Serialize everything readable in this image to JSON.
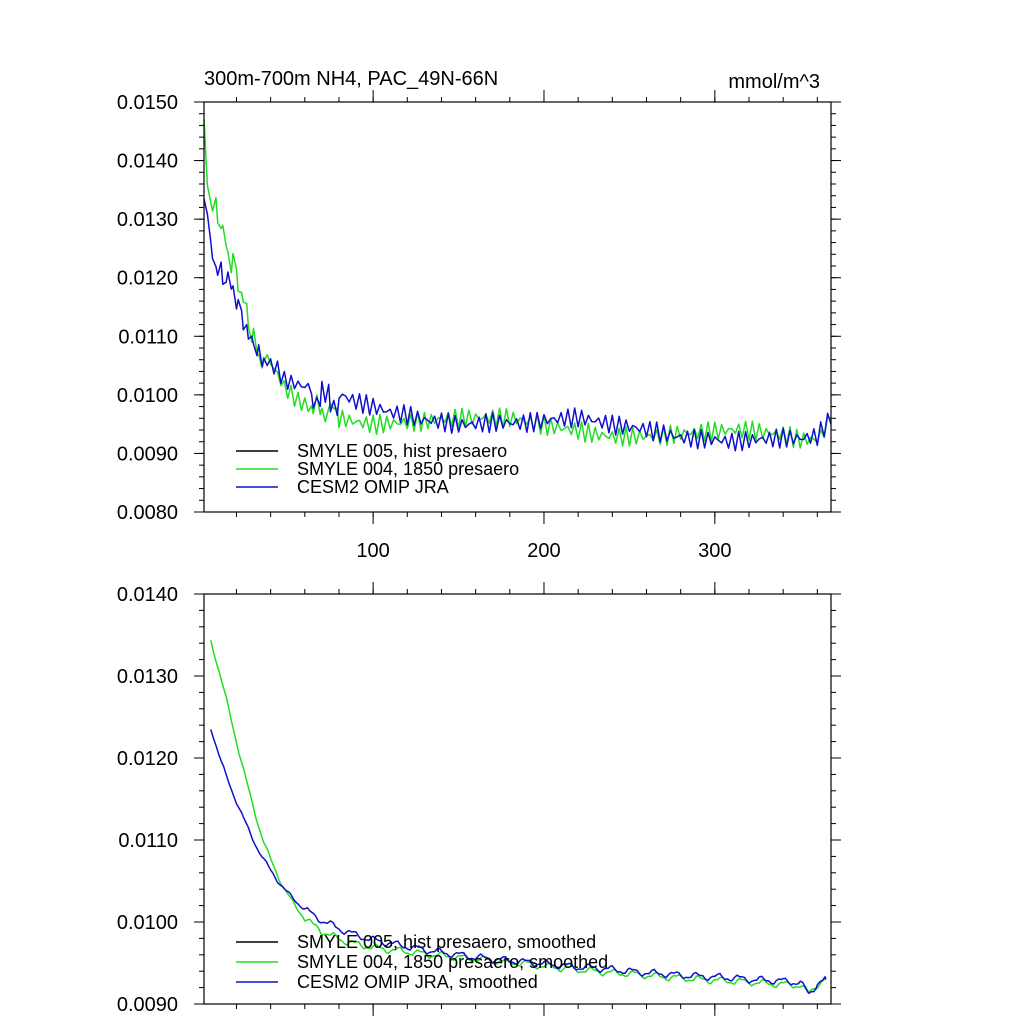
{
  "chart_data": [
    {
      "type": "line",
      "title": "300m-700m NH4, PAC_49N-66N",
      "units": "mmol/m^3",
      "xlim": [
        1,
        368
      ],
      "ylim": [
        0.008,
        0.015
      ],
      "x_ticks": [
        100,
        200,
        300
      ],
      "x_tick_labels": [
        "100",
        "200",
        "300"
      ],
      "y_ticks": [
        0.008,
        0.009,
        0.01,
        0.011,
        0.012,
        0.013,
        0.014,
        0.015
      ],
      "y_tick_labels": [
        "0.0080",
        "0.0090",
        "0.0100",
        "0.0110",
        "0.0120",
        "0.0130",
        "0.0140",
        "0.0150"
      ],
      "legend_position": "bottom-left",
      "grid": false,
      "series": [
        {
          "name": "SMYLE 005, hist presaero",
          "color": "#000000",
          "points": []
        },
        {
          "name": "SMYLE 004, 1850 presaero",
          "color": "#22dd22",
          "points": [
            [
              1,
              0.0147
            ],
            [
              3,
              0.0137
            ],
            [
              6,
              0.0132
            ],
            [
              9,
              0.0131
            ],
            [
              12,
              0.0127
            ],
            [
              15,
              0.0124
            ],
            [
              18,
              0.0123
            ],
            [
              21,
              0.012
            ],
            [
              24,
              0.0116
            ],
            [
              27,
              0.0112
            ],
            [
              30,
              0.0109
            ],
            [
              33,
              0.0107
            ],
            [
              36,
              0.0106
            ],
            [
              40,
              0.0105
            ],
            [
              44,
              0.0103
            ],
            [
              48,
              0.0101
            ],
            [
              52,
              0.01
            ],
            [
              56,
              0.0099
            ],
            [
              60,
              0.00985
            ],
            [
              65,
              0.0098
            ],
            [
              70,
              0.00975
            ],
            [
              75,
              0.0097
            ],
            [
              80,
              0.0097
            ],
            [
              90,
              0.00965
            ],
            [
              100,
              0.0096
            ],
            [
              110,
              0.0096
            ],
            [
              120,
              0.00958
            ],
            [
              130,
              0.00955
            ],
            [
              140,
              0.00955
            ],
            [
              150,
              0.00952
            ],
            [
              160,
              0.0095
            ],
            [
              170,
              0.0095
            ],
            [
              180,
              0.0095
            ],
            [
              190,
              0.00948
            ],
            [
              200,
              0.00945
            ],
            [
              210,
              0.00945
            ],
            [
              220,
              0.00945
            ],
            [
              230,
              0.00942
            ],
            [
              240,
              0.0094
            ],
            [
              250,
              0.0094
            ],
            [
              260,
              0.00938
            ],
            [
              270,
              0.00935
            ],
            [
              280,
              0.00935
            ],
            [
              290,
              0.00932
            ],
            [
              300,
              0.0093
            ],
            [
              310,
              0.0093
            ],
            [
              320,
              0.00928
            ],
            [
              330,
              0.00925
            ],
            [
              340,
              0.00925
            ],
            [
              350,
              0.0092
            ],
            [
              360,
              0.00925
            ],
            [
              368,
              0.0096
            ]
          ]
        },
        {
          "name": "CESM2 OMIP JRA",
          "color": "#1010cc",
          "points": [
            [
              1,
              0.0133
            ],
            [
              3,
              0.0129
            ],
            [
              6,
              0.0125
            ],
            [
              9,
              0.0121
            ],
            [
              12,
              0.012
            ],
            [
              15,
              0.0119
            ],
            [
              18,
              0.0118
            ],
            [
              21,
              0.0116
            ],
            [
              24,
              0.0113
            ],
            [
              27,
              0.011
            ],
            [
              30,
              0.0108
            ],
            [
              33,
              0.0107
            ],
            [
              36,
              0.0106
            ],
            [
              40,
              0.0105
            ],
            [
              44,
              0.0104
            ],
            [
              48,
              0.0102
            ],
            [
              52,
              0.01015
            ],
            [
              56,
              0.0101
            ],
            [
              60,
              0.01005
            ],
            [
              65,
              0.01
            ],
            [
              70,
              0.00995
            ],
            [
              75,
              0.0099
            ],
            [
              80,
              0.0099
            ],
            [
              90,
              0.0098
            ],
            [
              100,
              0.00975
            ],
            [
              110,
              0.0097
            ],
            [
              120,
              0.0097
            ],
            [
              130,
              0.00965
            ],
            [
              140,
              0.00965
            ],
            [
              150,
              0.0096
            ],
            [
              160,
              0.0096
            ],
            [
              170,
              0.0096
            ],
            [
              180,
              0.00955
            ],
            [
              190,
              0.0095
            ],
            [
              200,
              0.0095
            ],
            [
              210,
              0.0095
            ],
            [
              220,
              0.0095
            ],
            [
              230,
              0.00945
            ],
            [
              240,
              0.0094
            ],
            [
              250,
              0.0094
            ],
            [
              260,
              0.0094
            ],
            [
              270,
              0.00938
            ],
            [
              280,
              0.00935
            ],
            [
              290,
              0.00935
            ],
            [
              300,
              0.00935
            ],
            [
              310,
              0.0093
            ],
            [
              320,
              0.0093
            ],
            [
              330,
              0.00928
            ],
            [
              340,
              0.00925
            ],
            [
              350,
              0.0092
            ],
            [
              360,
              0.0092
            ],
            [
              368,
              0.0095
            ]
          ]
        }
      ]
    },
    {
      "type": "line",
      "xlim": [
        1,
        368
      ],
      "ylim": [
        0.009,
        0.014
      ],
      "x_ticks": [
        100,
        200,
        300
      ],
      "x_tick_labels": [],
      "y_ticks": [
        0.009,
        0.01,
        0.011,
        0.012,
        0.013,
        0.014
      ],
      "y_tick_labels": [
        "0.0090",
        "0.0100",
        "0.0110",
        "0.0120",
        "0.0130",
        "0.0140"
      ],
      "legend_position": "bottom-left",
      "grid": false,
      "series": [
        {
          "name": "SMYLE 005, hist presaero, smoothed",
          "color": "#000000",
          "points": []
        },
        {
          "name": "SMYLE 004, 1850 presaero, smoothed",
          "color": "#22dd22",
          "points": [
            [
              5,
              0.01343
            ],
            [
              8,
              0.0132
            ],
            [
              11,
              0.01297
            ],
            [
              14,
              0.01272
            ],
            [
              17,
              0.01246
            ],
            [
              20,
              0.0122
            ],
            [
              24,
              0.01187
            ],
            [
              28,
              0.01154
            ],
            [
              32,
              0.01124
            ],
            [
              36,
              0.01098
            ],
            [
              40,
              0.01076
            ],
            [
              44,
              0.01057
            ],
            [
              48,
              0.01041
            ],
            [
              52,
              0.01027
            ],
            [
              56,
              0.01015
            ],
            [
              60,
              0.01005
            ],
            [
              65,
              0.00996
            ],
            [
              70,
              0.00989
            ],
            [
              75,
              0.00984
            ],
            [
              80,
              0.00979
            ],
            [
              90,
              0.00973
            ],
            [
              100,
              0.00969
            ],
            [
              110,
              0.00966
            ],
            [
              120,
              0.00964
            ],
            [
              130,
              0.00961
            ],
            [
              140,
              0.00959
            ],
            [
              150,
              0.00957
            ],
            [
              160,
              0.00955
            ],
            [
              170,
              0.00953
            ],
            [
              180,
              0.00951
            ],
            [
              190,
              0.00949
            ],
            [
              200,
              0.00946
            ],
            [
              210,
              0.00944
            ],
            [
              220,
              0.00942
            ],
            [
              230,
              0.0094
            ],
            [
              240,
              0.00938
            ],
            [
              250,
              0.00937
            ],
            [
              260,
              0.00935
            ],
            [
              270,
              0.00933
            ],
            [
              280,
              0.00932
            ],
            [
              290,
              0.0093
            ],
            [
              300,
              0.00929
            ],
            [
              310,
              0.00928
            ],
            [
              320,
              0.00927
            ],
            [
              330,
              0.00925
            ],
            [
              340,
              0.00924
            ],
            [
              350,
              0.00923
            ],
            [
              355,
              0.00913
            ],
            [
              360,
              0.00924
            ],
            [
              365,
              0.0093
            ]
          ]
        },
        {
          "name": "CESM2 OMIP JRA, smoothed",
          "color": "#1010cc",
          "points": [
            [
              5,
              0.01237
            ],
            [
              8,
              0.01216
            ],
            [
              11,
              0.01196
            ],
            [
              14,
              0.01178
            ],
            [
              17,
              0.01162
            ],
            [
              20,
              0.01147
            ],
            [
              24,
              0.01127
            ],
            [
              28,
              0.01108
            ],
            [
              32,
              0.01091
            ],
            [
              36,
              0.01076
            ],
            [
              40,
              0.01063
            ],
            [
              44,
              0.01051
            ],
            [
              48,
              0.0104
            ],
            [
              52,
              0.01031
            ],
            [
              56,
              0.01023
            ],
            [
              60,
              0.01016
            ],
            [
              65,
              0.01008
            ],
            [
              70,
              0.01002
            ],
            [
              75,
              0.00997
            ],
            [
              80,
              0.00992
            ],
            [
              90,
              0.00984
            ],
            [
              100,
              0.00978
            ],
            [
              110,
              0.00974
            ],
            [
              120,
              0.0097
            ],
            [
              130,
              0.00966
            ],
            [
              140,
              0.00963
            ],
            [
              150,
              0.0096
            ],
            [
              160,
              0.00957
            ],
            [
              170,
              0.00955
            ],
            [
              180,
              0.00953
            ],
            [
              190,
              0.00951
            ],
            [
              200,
              0.00949
            ],
            [
              210,
              0.00947
            ],
            [
              220,
              0.00945
            ],
            [
              230,
              0.00944
            ],
            [
              240,
              0.00942
            ],
            [
              250,
              0.0094
            ],
            [
              260,
              0.00938
            ],
            [
              270,
              0.00937
            ],
            [
              280,
              0.00935
            ],
            [
              290,
              0.00934
            ],
            [
              300,
              0.00933
            ],
            [
              310,
              0.00932
            ],
            [
              320,
              0.0093
            ],
            [
              330,
              0.00929
            ],
            [
              340,
              0.00928
            ],
            [
              350,
              0.00926
            ],
            [
              355,
              0.00912
            ],
            [
              360,
              0.00925
            ],
            [
              365,
              0.0093
            ]
          ]
        }
      ]
    }
  ]
}
